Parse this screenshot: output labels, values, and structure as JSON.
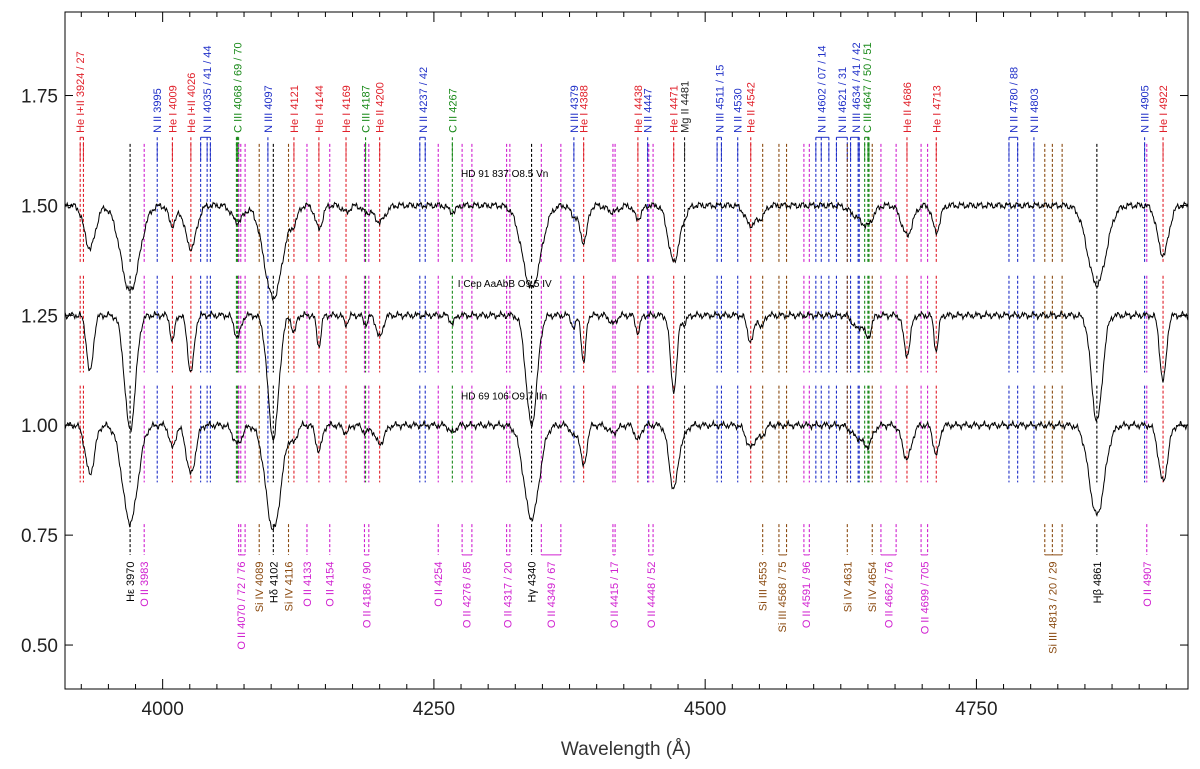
{
  "chart_data": {
    "type": "line",
    "xlabel": "Wavelength (Å)",
    "ylabel": "",
    "xlim": [
      3910,
      4945
    ],
    "ylim": [
      0.4,
      1.94
    ],
    "x_ticks": [
      4000,
      4250,
      4500,
      4750
    ],
    "y_ticks": [
      0.5,
      0.75,
      1.0,
      1.25,
      1.5,
      1.75
    ],
    "x_tick_labels": [
      "4000",
      "4250",
      "4500",
      "4750"
    ],
    "y_tick_labels": [
      "0.50",
      "0.75",
      "1.00",
      "1.25",
      "1.50",
      "1.75"
    ],
    "colors": {
      "He": "#e0202a",
      "N": "#2030c8",
      "C": "#1a8a1a",
      "Mg": "#222222",
      "O": "#d020d0",
      "Si": "#8a4a10",
      "H": "#000000"
    },
    "series": [
      {
        "name": "HD 91 837   O8.5 Vn",
        "offset": 1.5,
        "label_at": [
          4275,
          1.565
        ],
        "depth_scale": 0.75,
        "width_scale": 1.7
      },
      {
        "name": "I Cep AaAbB   O9.5 IV",
        "offset": 1.25,
        "label_at": [
          4272,
          1.314
        ],
        "depth_scale": 1.0,
        "width_scale": 1.0
      },
      {
        "name": "HD 69 106   O9.7 IIn",
        "offset": 1.0,
        "label_at": [
          4275,
          1.058
        ],
        "depth_scale": 0.85,
        "width_scale": 1.4
      }
    ],
    "absorption_lines": [
      [
        3933,
        0.13,
        3
      ],
      [
        3970,
        0.26,
        5
      ],
      [
        4009,
        0.06,
        2
      ],
      [
        4026,
        0.13,
        3
      ],
      [
        4069,
        0.05,
        3
      ],
      [
        4102,
        0.28,
        5
      ],
      [
        4121,
        0.04,
        2
      ],
      [
        4144,
        0.07,
        2
      ],
      [
        4169,
        0.02,
        2
      ],
      [
        4187,
        0.02,
        2
      ],
      [
        4200,
        0.05,
        3
      ],
      [
        4267,
        0.02,
        2
      ],
      [
        4340,
        0.25,
        5
      ],
      [
        4379,
        0.03,
        2
      ],
      [
        4388,
        0.11,
        2
      ],
      [
        4415,
        0.02,
        3
      ],
      [
        4438,
        0.04,
        2
      ],
      [
        4471,
        0.17,
        3
      ],
      [
        4481,
        0.02,
        2
      ],
      [
        4542,
        0.06,
        3
      ],
      [
        4552,
        0.03,
        2
      ],
      [
        4640,
        0.03,
        4
      ],
      [
        4650,
        0.05,
        3
      ],
      [
        4686,
        0.09,
        3
      ],
      [
        4713,
        0.08,
        2
      ],
      [
        4861,
        0.24,
        5
      ],
      [
        4922,
        0.15,
        3
      ]
    ],
    "top_labels": [
      {
        "text": "He I+II 3924 / 27",
        "x": 3924,
        "el": "He",
        "marks": [
          3924,
          3927
        ]
      },
      {
        "text": "N II 3995",
        "x": 3995,
        "el": "N",
        "marks": [
          3995
        ]
      },
      {
        "text": "He I 4009",
        "x": 4009,
        "el": "He",
        "marks": [
          4009
        ]
      },
      {
        "text": "He I+II 4026",
        "x": 4026,
        "el": "He",
        "marks": [
          4026
        ]
      },
      {
        "text": "N II 4035 / 41 / 44",
        "x": 4041,
        "el": "N",
        "marks": [
          4035,
          4041,
          4044
        ]
      },
      {
        "text": "C III 4068 / 69 / 70",
        "x": 4069,
        "el": "C",
        "marks": [
          4068,
          4069,
          4070
        ]
      },
      {
        "text": "N III 4097",
        "x": 4097,
        "el": "N",
        "marks": [
          4097
        ]
      },
      {
        "text": "He I 4121",
        "x": 4121,
        "el": "He",
        "marks": [
          4121
        ]
      },
      {
        "text": "He I 4144",
        "x": 4144,
        "el": "He",
        "marks": [
          4144
        ]
      },
      {
        "text": "He I 4169",
        "x": 4169,
        "el": "He",
        "marks": [
          4169
        ]
      },
      {
        "text": "C III 4187",
        "x": 4187,
        "el": "C",
        "marks": [
          4187
        ]
      },
      {
        "text": "He II 4200",
        "x": 4200,
        "el": "He",
        "marks": [
          4200
        ]
      },
      {
        "text": "N II 4237 / 42",
        "x": 4240,
        "el": "N",
        "marks": [
          4237,
          4242
        ]
      },
      {
        "text": "C II 4267",
        "x": 4267,
        "el": "C",
        "marks": [
          4267
        ]
      },
      {
        "text": "N III 4379",
        "x": 4379,
        "el": "N",
        "marks": [
          4379
        ]
      },
      {
        "text": "He I 4388",
        "x": 4388,
        "el": "He",
        "marks": [
          4388
        ]
      },
      {
        "text": "He I 4438",
        "x": 4438,
        "el": "He",
        "marks": [
          4438
        ]
      },
      {
        "text": "N II 4447",
        "x": 4447,
        "el": "N",
        "marks": [
          4447
        ]
      },
      {
        "text": "He I 4471",
        "x": 4471,
        "el": "He",
        "marks": [
          4471
        ]
      },
      {
        "text": "Mg II 4481",
        "x": 4481,
        "el": "Mg",
        "marks": [
          4481
        ]
      },
      {
        "text": "N III 4511 / 15",
        "x": 4513,
        "el": "N",
        "marks": [
          4511,
          4515
        ]
      },
      {
        "text": "N II 4530",
        "x": 4530,
        "el": "N",
        "marks": [
          4530
        ]
      },
      {
        "text": "He II 4542",
        "x": 4542,
        "el": "He",
        "marks": [
          4542
        ]
      },
      {
        "text": "N II 4602 / 07 / 14",
        "x": 4607,
        "el": "N",
        "marks": [
          4602,
          4607,
          4614
        ]
      },
      {
        "text": "N II 4621 / 31",
        "x": 4626,
        "el": "N",
        "marks": [
          4621,
          4631
        ]
      },
      {
        "text": "N III 4634 / 41 / 42",
        "x": 4639,
        "el": "N",
        "marks": [
          4634,
          4641,
          4642
        ]
      },
      {
        "text": "C III 4647 / 50 / 51",
        "x": 4649,
        "el": "C",
        "marks": [
          4647,
          4650,
          4651
        ]
      },
      {
        "text": "He II 4686",
        "x": 4686,
        "el": "He",
        "marks": [
          4686
        ]
      },
      {
        "text": "He I 4713",
        "x": 4713,
        "el": "He",
        "marks": [
          4713
        ]
      },
      {
        "text": "N II 4780 / 88",
        "x": 4784,
        "el": "N",
        "marks": [
          4780,
          4788
        ]
      },
      {
        "text": "N II 4803",
        "x": 4803,
        "el": "N",
        "marks": [
          4803
        ]
      },
      {
        "text": "N III 4905",
        "x": 4905,
        "el": "N",
        "marks": [
          4905
        ]
      },
      {
        "text": "He I 4922",
        "x": 4922,
        "el": "He",
        "marks": [
          4922
        ]
      }
    ],
    "bottom_labels": [
      {
        "text": "Hε 3970",
        "x": 3970,
        "el": "H",
        "marks": [
          3970
        ]
      },
      {
        "text": "O II 3983",
        "x": 3983,
        "el": "O",
        "marks": [
          3983
        ]
      },
      {
        "text": "O II 4070 / 72 / 76",
        "x": 4072,
        "el": "O",
        "marks": [
          4070,
          4072,
          4076
        ]
      },
      {
        "text": "Si IV 4089",
        "x": 4089,
        "el": "Si",
        "marks": [
          4089
        ]
      },
      {
        "text": "Hδ 4102",
        "x": 4102,
        "el": "H",
        "marks": [
          4102
        ]
      },
      {
        "text": "Si IV 4116",
        "x": 4116,
        "el": "Si",
        "marks": [
          4116
        ]
      },
      {
        "text": "O II 4133",
        "x": 4133,
        "el": "O",
        "marks": [
          4133
        ]
      },
      {
        "text": "O II 4154",
        "x": 4154,
        "el": "O",
        "marks": [
          4154
        ]
      },
      {
        "text": "O II 4186 / 90",
        "x": 4188,
        "el": "O",
        "marks": [
          4186,
          4190
        ]
      },
      {
        "text": "O II 4254",
        "x": 4254,
        "el": "O",
        "marks": [
          4254
        ]
      },
      {
        "text": "O II 4276 / 85",
        "x": 4280,
        "el": "O",
        "marks": [
          4276,
          4285
        ]
      },
      {
        "text": "O II 4317 / 20",
        "x": 4318,
        "el": "O",
        "marks": [
          4317,
          4320
        ]
      },
      {
        "text": "Hγ 4340",
        "x": 4340,
        "el": "H",
        "marks": [
          4340
        ]
      },
      {
        "text": "O II 4349 / 67",
        "x": 4358,
        "el": "O",
        "marks": [
          4349,
          4367
        ]
      },
      {
        "text": "O II 4415 / 17",
        "x": 4416,
        "el": "O",
        "marks": [
          4415,
          4417
        ]
      },
      {
        "text": "O II 4448 / 52",
        "x": 4450,
        "el": "O",
        "marks": [
          4448,
          4452
        ]
      },
      {
        "text": "Si III 4553",
        "x": 4553,
        "el": "Si",
        "marks": [
          4553
        ]
      },
      {
        "text": "Si III 4568 / 75",
        "x": 4571,
        "el": "Si",
        "marks": [
          4568,
          4575
        ]
      },
      {
        "text": "O II 4591 / 96",
        "x": 4593,
        "el": "O",
        "marks": [
          4591,
          4596
        ]
      },
      {
        "text": "Si IV 4631",
        "x": 4631,
        "el": "Si",
        "marks": [
          4631
        ]
      },
      {
        "text": "Si IV 4654",
        "x": 4654,
        "el": "Si",
        "marks": [
          4654
        ]
      },
      {
        "text": "O II 4662 / 76",
        "x": 4669,
        "el": "O",
        "marks": [
          4662,
          4676
        ]
      },
      {
        "text": "O II 4699 / 705",
        "x": 4702,
        "el": "O",
        "marks": [
          4699,
          4705
        ]
      },
      {
        "text": "Si III 4813 / 20 / 29",
        "x": 4820,
        "el": "Si",
        "marks": [
          4813,
          4820,
          4829
        ]
      },
      {
        "text": "Hβ 4861",
        "x": 4861,
        "el": "H",
        "marks": [
          4861
        ]
      },
      {
        "text": "O II 4907",
        "x": 4907,
        "el": "O",
        "marks": [
          4907
        ]
      }
    ]
  }
}
